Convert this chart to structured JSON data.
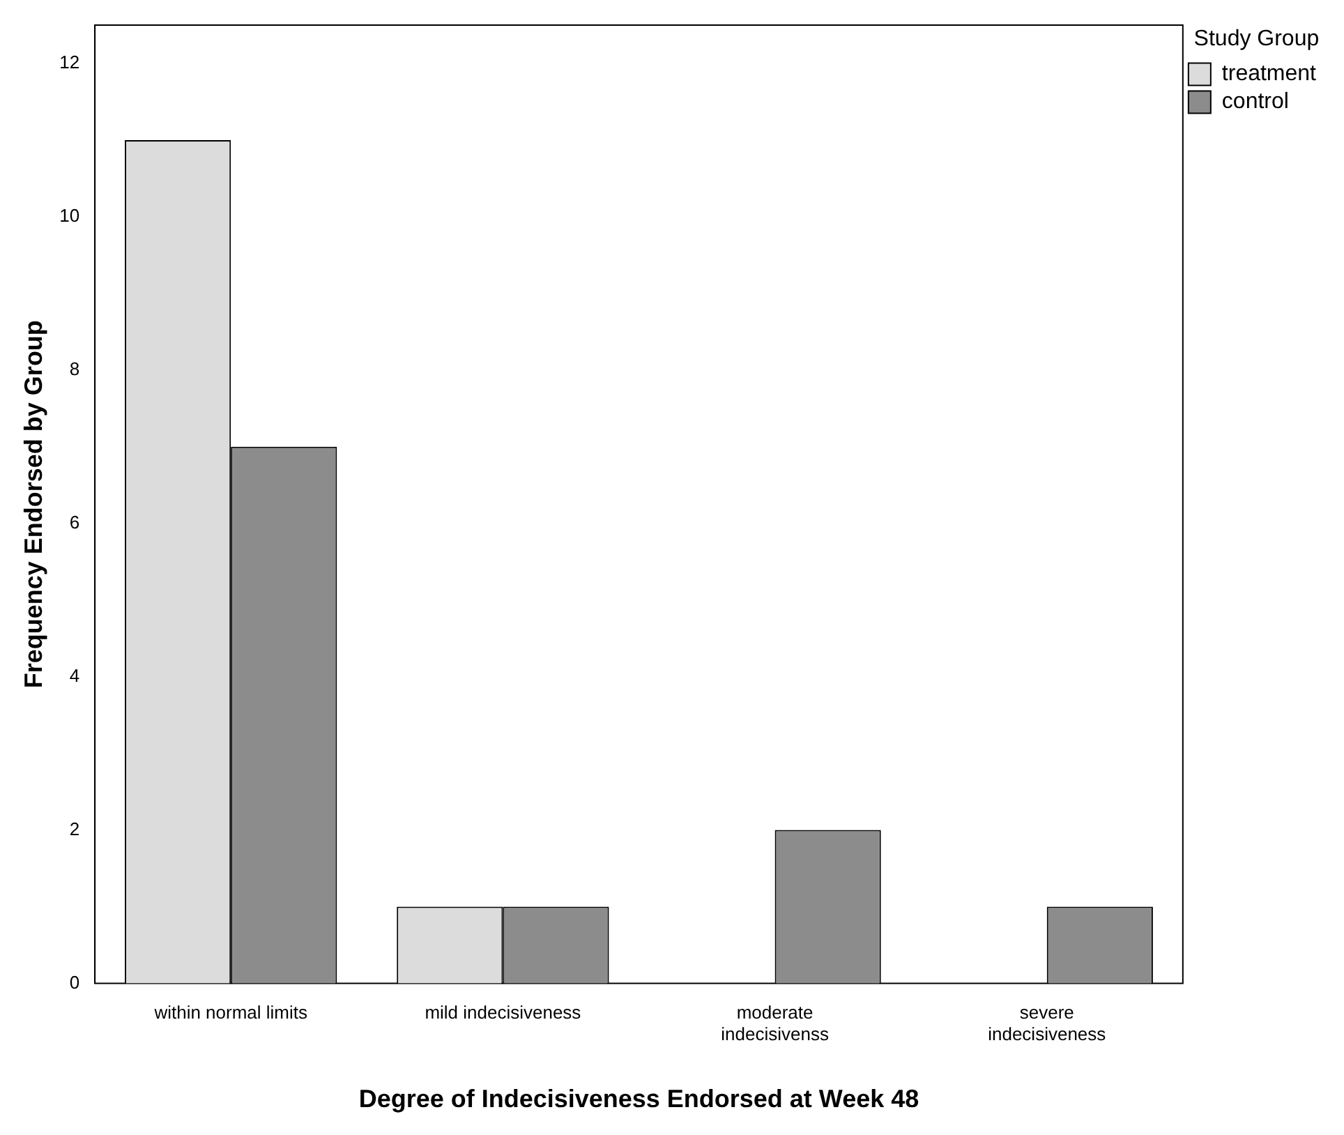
{
  "chart_data": {
    "type": "bar",
    "xlabel": "Degree of Indecisiveness Endorsed at Week 48",
    "ylabel": "Frequency Endorsed by Group",
    "legend_title": "Study Group",
    "categories": [
      "within normal limits",
      "mild indecisiveness",
      "moderate indecisivenss",
      "severe indecisiveness"
    ],
    "series": [
      {
        "name": "treatment",
        "color": "#dcdcdc",
        "values": [
          11,
          1,
          0,
          0
        ]
      },
      {
        "name": "control",
        "color": "#8c8c8c",
        "values": [
          7,
          1,
          2,
          1
        ]
      }
    ],
    "ylim": [
      0,
      12.5
    ],
    "yticks": [
      0,
      2,
      4,
      6,
      8,
      10,
      12
    ],
    "grid": false,
    "legend": "top right"
  }
}
